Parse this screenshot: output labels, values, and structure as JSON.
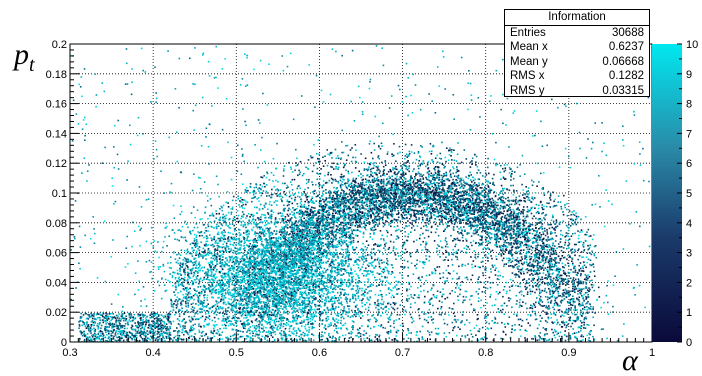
{
  "chart_data": {
    "type": "heatmap",
    "title": "",
    "xlabel": "α",
    "ylabel": "p",
    "ylabel_subscript": "t",
    "xlim": [
      0.3,
      1.0
    ],
    "ylim": [
      0.0,
      0.2
    ],
    "x_ticks": [
      "0.3",
      "0.4",
      "0.5",
      "0.6",
      "0.7",
      "0.8",
      "0.9",
      "1"
    ],
    "y_ticks": [
      "0",
      "0.02",
      "0.04",
      "0.06",
      "0.08",
      "0.1",
      "0.12",
      "0.14",
      "0.16",
      "0.18",
      "0.2"
    ],
    "colorbar": {
      "range": [
        0,
        10
      ],
      "ticks": [
        "0",
        "1",
        "2",
        "3",
        "4",
        "5",
        "6",
        "7",
        "8",
        "9",
        "10"
      ],
      "color_low": "#0a0a3a",
      "color_high": "#00e8f0"
    },
    "grid": true,
    "density_model": {
      "arc_center_x": 0.71,
      "arc_center_y": 0.0,
      "arc_radius_x": 0.19,
      "arc_radius_y": 0.1,
      "arc_width": 0.012,
      "core_mean_x": 0.55,
      "core_mean_y": 0.045,
      "entries": 30688
    }
  },
  "stats": {
    "title": "Information",
    "rows": [
      {
        "label": "Entries",
        "value": "30688"
      },
      {
        "label": "Mean x",
        "value": "0.6237"
      },
      {
        "label": "Mean y",
        "value": "0.06668"
      },
      {
        "label": "RMS x",
        "value": "0.1282"
      },
      {
        "label": "RMS y",
        "value": "0.03315"
      }
    ]
  }
}
